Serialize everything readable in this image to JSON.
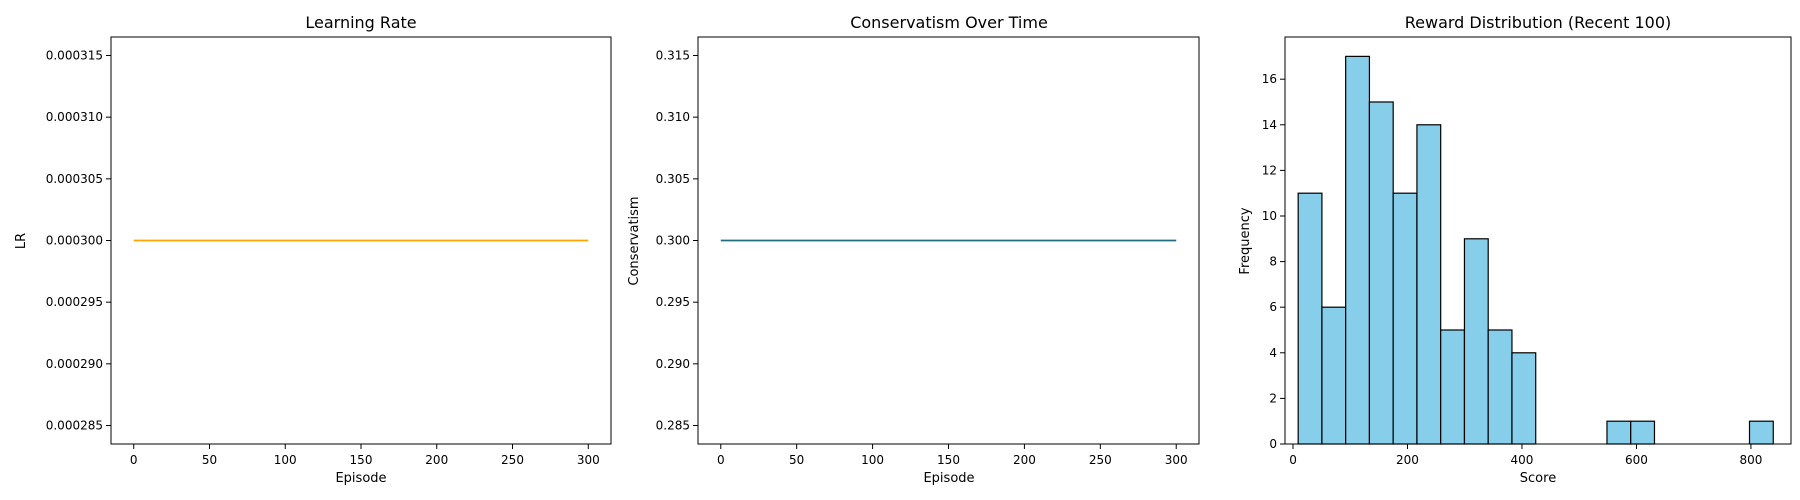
{
  "chart_data": [
    {
      "type": "line",
      "title": "Learning Rate",
      "xlabel": "Episode",
      "ylabel": "LR",
      "xlim": [
        -15,
        315
      ],
      "ylim": [
        0.0002835,
        0.0003165
      ],
      "xticks": [
        0,
        50,
        100,
        150,
        200,
        250,
        300
      ],
      "yticks": [
        "0.000285",
        "0.000290",
        "0.000295",
        "0.000300",
        "0.000305",
        "0.000310",
        "0.000315"
      ],
      "grid": false,
      "series": [
        {
          "color": "#ffa500",
          "x": [
            0,
            300
          ],
          "y": [
            0.0003,
            0.0003
          ]
        }
      ]
    },
    {
      "type": "line",
      "title": "Conservatism Over Time",
      "xlabel": "Episode",
      "ylabel": "Conservatism",
      "xlim": [
        -15,
        315
      ],
      "ylim": [
        0.2835,
        0.3165
      ],
      "xticks": [
        0,
        50,
        100,
        150,
        200,
        250,
        300
      ],
      "yticks": [
        "0.285",
        "0.290",
        "0.295",
        "0.300",
        "0.305",
        "0.310",
        "0.315"
      ],
      "grid": false,
      "series": [
        {
          "color": "#1f6f7f",
          "x": [
            0,
            300
          ],
          "y": [
            0.3,
            0.3
          ]
        }
      ]
    },
    {
      "type": "bar",
      "subtype": "histogram",
      "title": "Reward Distribution (Recent 100)",
      "xlabel": "Score",
      "ylabel": "Frequency",
      "xlim": [
        -14,
        870
      ],
      "ylim": [
        0,
        17.85
      ],
      "xticks": [
        0,
        200,
        400,
        600,
        800
      ],
      "yticks": [
        0,
        2,
        4,
        6,
        8,
        10,
        12,
        14,
        16
      ],
      "grid": false,
      "bar_color": "#87ceeb",
      "edge_color": "#000000",
      "bin_edges": [
        9,
        50.5,
        92,
        133.5,
        175,
        216.5,
        258,
        299.5,
        341,
        382.5,
        424,
        465.5,
        507,
        548.5,
        590,
        631.5,
        673,
        714.5,
        756,
        797.5,
        839
      ],
      "counts": [
        11,
        6,
        17,
        15,
        11,
        14,
        5,
        9,
        5,
        4,
        0,
        0,
        0,
        1,
        1,
        0,
        0,
        0,
        0,
        1
      ]
    }
  ]
}
